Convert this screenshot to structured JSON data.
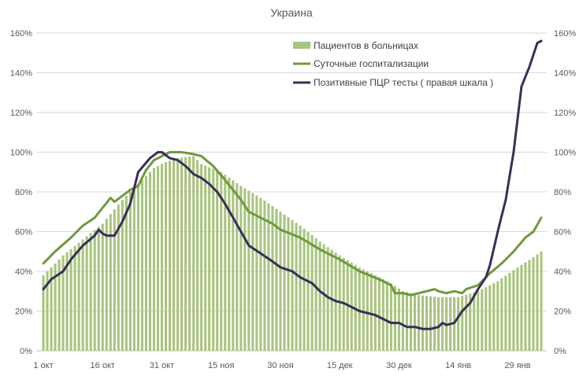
{
  "chart_data": {
    "type": "bar+line",
    "title": "Украина",
    "ylim_left": [
      0,
      160
    ],
    "ylim_right": [
      0,
      160
    ],
    "y_ticks": [
      "0%",
      "20%",
      "40%",
      "60%",
      "80%",
      "100%",
      "120%",
      "140%",
      "160%"
    ],
    "x_tick_labels": [
      "1 окт",
      "16 окт",
      "31 окт",
      "15 ноя",
      "30 ноя",
      "15 дек",
      "30 дек",
      "14 янв",
      "29 янв"
    ],
    "x_tick_index": [
      0,
      15,
      30,
      45,
      60,
      75,
      90,
      105,
      120
    ],
    "grid": true,
    "legend_position": "top-right",
    "series": [
      {
        "name": "Пациентов в больницах",
        "kind": "bar",
        "axis": "left",
        "color": "#a9c47f",
        "anchors": [
          [
            0,
            38
          ],
          [
            5,
            48
          ],
          [
            10,
            56
          ],
          [
            15,
            64
          ],
          [
            20,
            76
          ],
          [
            25,
            86
          ],
          [
            28,
            92
          ],
          [
            31,
            95
          ],
          [
            34,
            97
          ],
          [
            38,
            98
          ],
          [
            40,
            94
          ],
          [
            45,
            90
          ],
          [
            50,
            83
          ],
          [
            55,
            77
          ],
          [
            60,
            70
          ],
          [
            65,
            63
          ],
          [
            70,
            55
          ],
          [
            75,
            48
          ],
          [
            80,
            42
          ],
          [
            85,
            37
          ],
          [
            88,
            34
          ],
          [
            91,
            30
          ],
          [
            95,
            28
          ],
          [
            100,
            27
          ],
          [
            105,
            27
          ],
          [
            110,
            30
          ],
          [
            115,
            35
          ],
          [
            120,
            42
          ],
          [
            124,
            47
          ],
          [
            126,
            50
          ]
        ]
      },
      {
        "name": "Суточные госпитализации",
        "kind": "line",
        "axis": "left",
        "color": "#6e9a3d",
        "anchors": [
          [
            0,
            44
          ],
          [
            3,
            50
          ],
          [
            7,
            57
          ],
          [
            10,
            63
          ],
          [
            13,
            67
          ],
          [
            15,
            72
          ],
          [
            17,
            77
          ],
          [
            18,
            75
          ],
          [
            22,
            81
          ],
          [
            24,
            83
          ],
          [
            26,
            91
          ],
          [
            28,
            96
          ],
          [
            30,
            98
          ],
          [
            32,
            100
          ],
          [
            35,
            100
          ],
          [
            38,
            99
          ],
          [
            40,
            98
          ],
          [
            43,
            93
          ],
          [
            46,
            86
          ],
          [
            48,
            81
          ],
          [
            50,
            76
          ],
          [
            52,
            70
          ],
          [
            55,
            67
          ],
          [
            58,
            64
          ],
          [
            60,
            61
          ],
          [
            65,
            57
          ],
          [
            70,
            51
          ],
          [
            75,
            46
          ],
          [
            80,
            40
          ],
          [
            85,
            36
          ],
          [
            88,
            33
          ],
          [
            89,
            29
          ],
          [
            91,
            29
          ],
          [
            93,
            28
          ],
          [
            95,
            29
          ],
          [
            97,
            30
          ],
          [
            99,
            31
          ],
          [
            100,
            30
          ],
          [
            102,
            29
          ],
          [
            104,
            30
          ],
          [
            106,
            29
          ],
          [
            107,
            31
          ],
          [
            110,
            33
          ],
          [
            113,
            39
          ],
          [
            116,
            44
          ],
          [
            119,
            50
          ],
          [
            122,
            57
          ],
          [
            124,
            60
          ],
          [
            126,
            67
          ]
        ]
      },
      {
        "name": "Позитивные ПЦР тесты ( правая шкала )",
        "kind": "line",
        "axis": "right",
        "color": "#3b2e58",
        "anchors": [
          [
            0,
            31
          ],
          [
            2,
            36
          ],
          [
            5,
            40
          ],
          [
            7,
            46
          ],
          [
            10,
            53
          ],
          [
            13,
            58
          ],
          [
            14,
            61
          ],
          [
            15,
            59
          ],
          [
            16,
            58
          ],
          [
            18,
            58
          ],
          [
            20,
            65
          ],
          [
            22,
            74
          ],
          [
            24,
            90
          ],
          [
            27,
            97
          ],
          [
            29,
            100
          ],
          [
            30,
            100
          ],
          [
            32,
            97
          ],
          [
            34,
            96
          ],
          [
            36,
            93
          ],
          [
            38,
            89
          ],
          [
            40,
            87
          ],
          [
            42,
            84
          ],
          [
            44,
            80
          ],
          [
            46,
            74
          ],
          [
            48,
            67
          ],
          [
            50,
            60
          ],
          [
            52,
            53
          ],
          [
            55,
            49
          ],
          [
            58,
            45
          ],
          [
            60,
            42
          ],
          [
            63,
            40
          ],
          [
            65,
            37
          ],
          [
            68,
            34
          ],
          [
            70,
            30
          ],
          [
            72,
            27
          ],
          [
            74,
            25
          ],
          [
            76,
            24
          ],
          [
            78,
            22
          ],
          [
            80,
            20
          ],
          [
            82,
            19
          ],
          [
            84,
            18
          ],
          [
            86,
            16
          ],
          [
            88,
            14
          ],
          [
            90,
            14
          ],
          [
            92,
            12
          ],
          [
            94,
            12
          ],
          [
            96,
            11
          ],
          [
            98,
            11
          ],
          [
            100,
            12
          ],
          [
            101,
            14
          ],
          [
            102,
            13
          ],
          [
            104,
            14
          ],
          [
            106,
            20
          ],
          [
            108,
            24
          ],
          [
            110,
            31
          ],
          [
            112,
            37
          ],
          [
            113,
            43
          ],
          [
            115,
            60
          ],
          [
            117,
            76
          ],
          [
            119,
            100
          ],
          [
            121,
            133
          ],
          [
            123,
            143
          ],
          [
            125,
            155
          ],
          [
            126,
            156
          ]
        ]
      }
    ]
  }
}
